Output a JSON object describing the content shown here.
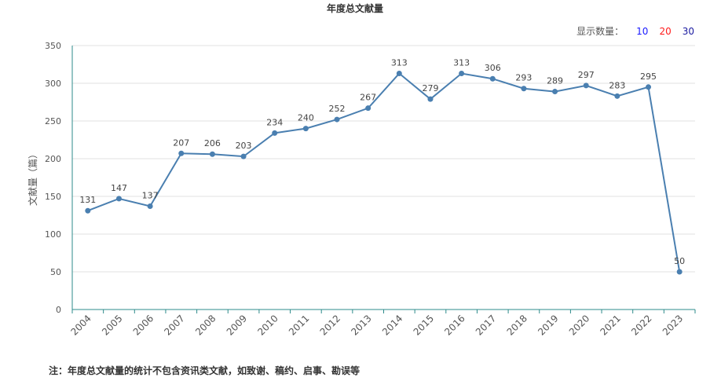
{
  "header": {
    "title": "年度总文献量",
    "count_label": "显示数量：",
    "count_options": [
      {
        "label": "10",
        "color": "#1a1aff"
      },
      {
        "label": "20",
        "color": "#ff1a1a"
      },
      {
        "label": "30",
        "color": "#1a1aa0"
      }
    ]
  },
  "note": "注：年度总文献量的统计不包含资讯类文献，如致谢、稿约、启事、勘误等",
  "colors": {
    "line": "#4a7fb0",
    "axis": "#2e8b8b",
    "grid": "#e0e0e0"
  },
  "chart_data": {
    "type": "line",
    "title": "年度总文献量",
    "xlabel": "",
    "ylabel": "文献量（篇）",
    "ylim": [
      0,
      350
    ],
    "yticks": [
      0,
      50,
      100,
      150,
      200,
      250,
      300,
      350
    ],
    "grid": true,
    "categories": [
      "2004",
      "2005",
      "2006",
      "2007",
      "2008",
      "2009",
      "2010",
      "2011",
      "2012",
      "2013",
      "2014",
      "2015",
      "2016",
      "2017",
      "2018",
      "2019",
      "2020",
      "2021",
      "2022",
      "2023"
    ],
    "series": [
      {
        "values": [
          131,
          147,
          137,
          207,
          206,
          203,
          234,
          240,
          252,
          267,
          313,
          279,
          313,
          306,
          293,
          289,
          297,
          283,
          295,
          50
        ]
      }
    ]
  }
}
